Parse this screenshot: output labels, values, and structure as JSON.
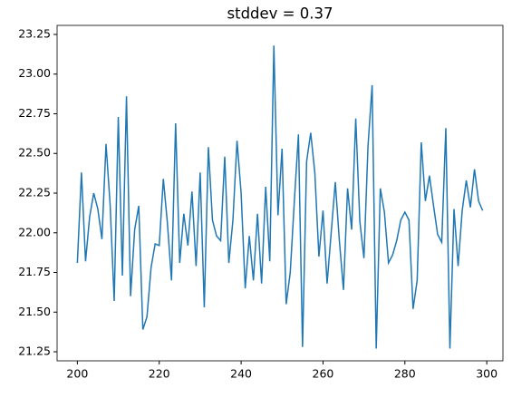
{
  "chart_data": {
    "type": "line",
    "title": "stddev = 0.37",
    "x": [
      200,
      201,
      202,
      203,
      204,
      205,
      206,
      207,
      208,
      209,
      210,
      211,
      212,
      213,
      214,
      215,
      216,
      217,
      218,
      219,
      220,
      221,
      222,
      223,
      224,
      225,
      226,
      227,
      228,
      229,
      230,
      231,
      232,
      233,
      234,
      235,
      236,
      237,
      238,
      239,
      240,
      241,
      242,
      243,
      244,
      245,
      246,
      247,
      248,
      249,
      250,
      251,
      252,
      253,
      254,
      255,
      256,
      257,
      258,
      259,
      260,
      261,
      262,
      263,
      264,
      265,
      266,
      267,
      268,
      269,
      270,
      271,
      272,
      273,
      274,
      275,
      276,
      277,
      278,
      279,
      280,
      281,
      282,
      283,
      284,
      285,
      286,
      287,
      288,
      289,
      290,
      291,
      292,
      293,
      294,
      295,
      296,
      297,
      298,
      299
    ],
    "series": [
      {
        "color": "#1f77b4",
        "values": [
          21.81,
          22.38,
          21.82,
          22.1,
          22.25,
          22.15,
          21.96,
          22.56,
          22.18,
          21.57,
          22.73,
          21.73,
          22.86,
          21.6,
          22.02,
          22.17,
          21.39,
          21.47,
          21.78,
          21.93,
          21.92,
          22.34,
          22.06,
          21.7,
          22.69,
          21.81,
          22.12,
          21.92,
          22.26,
          21.79,
          22.38,
          21.53,
          22.54,
          22.08,
          21.98,
          21.95,
          22.48,
          21.81,
          22.08,
          22.58,
          22.25,
          21.65,
          21.98,
          21.7,
          22.12,
          21.68,
          22.29,
          21.82,
          23.18,
          22.11,
          22.53,
          21.55,
          21.75,
          22.2,
          22.62,
          21.28,
          22.45,
          22.63,
          22.38,
          21.85,
          22.14,
          21.68,
          22.0,
          22.32,
          21.95,
          21.64,
          22.28,
          22.02,
          22.72,
          22.07,
          21.84,
          22.55,
          22.93,
          21.27,
          22.28,
          22.13,
          21.81,
          21.86,
          21.95,
          22.08,
          22.13,
          22.08,
          21.52,
          21.7,
          22.57,
          22.2,
          22.36,
          22.17,
          21.99,
          21.94,
          22.66,
          21.27,
          22.15,
          21.79,
          22.14,
          22.33,
          22.16,
          22.4,
          22.2,
          22.14
        ]
      }
    ],
    "xlim": [
      195.05,
      303.95
    ],
    "xticks": [
      200,
      220,
      240,
      260,
      280,
      300
    ],
    "ylim": [
      21.193,
      23.307
    ],
    "yticks": [
      21.25,
      {
        "value": 21.5,
        "label": "21.50"
      },
      21.75,
      {
        "value": 22,
        "label": "22.00"
      },
      22.25,
      {
        "value": 22.5,
        "label": "22.50"
      },
      22.75,
      {
        "value": 23,
        "label": "23.00"
      },
      23.25
    ]
  }
}
